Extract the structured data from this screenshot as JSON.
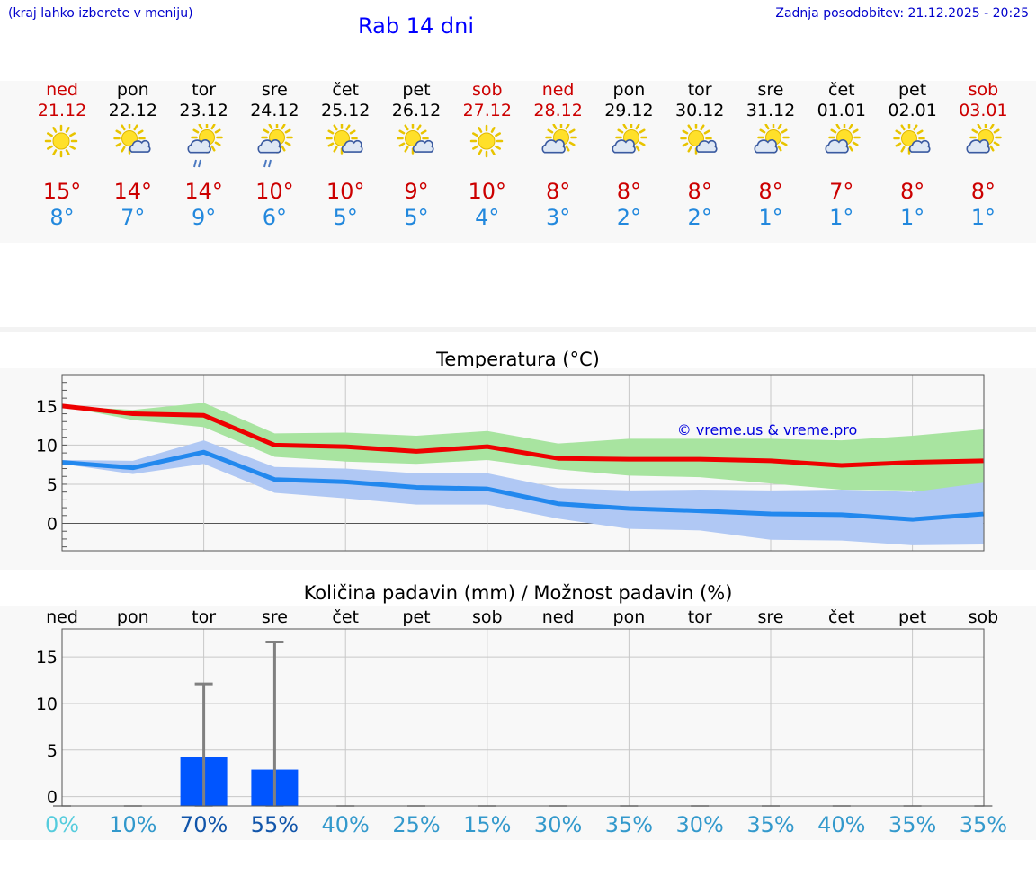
{
  "header": {
    "menu_hint": "(kraj lahko izberete v meniju)",
    "title": "Rab 14 dni",
    "updated": "Zadnja posodobitev: 21.12.2025 - 20:25"
  },
  "days": [
    {
      "name": "ned",
      "date": "21.12",
      "weekend": true,
      "icon": "sun-icon",
      "hi": "15°",
      "lo": "8°"
    },
    {
      "name": "pon",
      "date": "22.12",
      "weekend": false,
      "icon": "sun-cloud-icon",
      "hi": "14°",
      "lo": "7°"
    },
    {
      "name": "tor",
      "date": "23.12",
      "weekend": false,
      "icon": "sun-cloud-rain-icon",
      "hi": "14°",
      "lo": "9°"
    },
    {
      "name": "sre",
      "date": "24.12",
      "weekend": false,
      "icon": "sun-cloud-rain-icon",
      "hi": "10°",
      "lo": "6°"
    },
    {
      "name": "čet",
      "date": "25.12",
      "weekend": false,
      "icon": "sun-cloud-icon",
      "hi": "10°",
      "lo": "5°"
    },
    {
      "name": "pet",
      "date": "26.12",
      "weekend": false,
      "icon": "sun-cloud-icon",
      "hi": "9°",
      "lo": "5°"
    },
    {
      "name": "sob",
      "date": "27.12",
      "weekend": true,
      "icon": "sun-icon",
      "hi": "10°",
      "lo": "4°"
    },
    {
      "name": "ned",
      "date": "28.12",
      "weekend": true,
      "icon": "cloud-sun-icon",
      "hi": "8°",
      "lo": "3°"
    },
    {
      "name": "pon",
      "date": "29.12",
      "weekend": false,
      "icon": "cloud-sun-icon",
      "hi": "8°",
      "lo": "2°"
    },
    {
      "name": "tor",
      "date": "30.12",
      "weekend": false,
      "icon": "sun-cloud-icon",
      "hi": "8°",
      "lo": "2°"
    },
    {
      "name": "sre",
      "date": "31.12",
      "weekend": false,
      "icon": "cloud-sun-icon",
      "hi": "8°",
      "lo": "1°"
    },
    {
      "name": "čet",
      "date": "01.01",
      "weekend": false,
      "icon": "cloud-sun-icon",
      "hi": "7°",
      "lo": "1°"
    },
    {
      "name": "pet",
      "date": "02.01",
      "weekend": false,
      "icon": "sun-cloud-icon",
      "hi": "8°",
      "lo": "1°"
    },
    {
      "name": "sob",
      "date": "03.01",
      "weekend": true,
      "icon": "cloud-sun-icon",
      "hi": "8°",
      "lo": "1°"
    }
  ],
  "colors": {
    "weekend": "#cc0000",
    "max_line": "#ee0000",
    "min_line": "#2288ee",
    "max_band": "#a8e4a0",
    "min_band": "#b0c8f4",
    "bar": "#0055ff",
    "whisker": "#808080"
  },
  "chart_data": [
    {
      "type": "line",
      "title": "Temperatura (°C)",
      "watermark": "© vreme.us & vreme.pro",
      "ylim": [
        -3.5,
        19
      ],
      "yticks": [
        0,
        5,
        10,
        15
      ],
      "ytick_labels": [
        "0",
        "5",
        "10",
        "15"
      ],
      "x": [
        0,
        1,
        2,
        3,
        4,
        5,
        6,
        7,
        8,
        9,
        10,
        11,
        12,
        13
      ],
      "series": [
        {
          "name": "max",
          "values": [
            15,
            14,
            13.8,
            10,
            9.8,
            9.2,
            9.8,
            8.3,
            8.2,
            8.2,
            8.0,
            7.4,
            7.8,
            8.0
          ],
          "band_low": [
            15,
            13.2,
            12.3,
            8.5,
            7.9,
            7.6,
            8.1,
            6.9,
            6.1,
            5.9,
            5.1,
            4.3,
            4.2,
            4.0
          ],
          "band_high": [
            15,
            14.5,
            15.4,
            11.5,
            11.6,
            11.2,
            11.8,
            10.2,
            10.8,
            10.8,
            10.8,
            10.6,
            11.2,
            12.0
          ]
        },
        {
          "name": "min",
          "values": [
            7.8,
            7.1,
            9.1,
            5.6,
            5.3,
            4.6,
            4.4,
            2.5,
            1.9,
            1.6,
            1.2,
            1.1,
            0.5,
            1.2
          ],
          "band_low": [
            7.6,
            6.3,
            7.6,
            3.9,
            3.2,
            2.4,
            2.4,
            0.6,
            -0.7,
            -0.9,
            -2.1,
            -2.2,
            -2.8,
            -2.7
          ],
          "band_high": [
            8.1,
            8.0,
            10.6,
            7.2,
            7.0,
            6.4,
            6.4,
            4.5,
            4.2,
            4.3,
            4.2,
            4.3,
            4.0,
            5.2
          ]
        }
      ]
    },
    {
      "type": "bar",
      "title": "Količina padavin (mm) / Možnost padavin (%)",
      "ylim": [
        -1,
        18
      ],
      "yticks": [
        0,
        5,
        10,
        15
      ],
      "ytick_labels": [
        "0",
        "5",
        "10",
        "15"
      ],
      "categories": [
        "ned",
        "pon",
        "tor",
        "sre",
        "čet",
        "pet",
        "sob",
        "ned",
        "pon",
        "tor",
        "sre",
        "čet",
        "pet",
        "sob"
      ],
      "values": [
        0,
        0,
        4.3,
        2.9,
        0,
        0,
        0,
        0,
        0,
        0,
        0,
        0,
        0,
        0
      ],
      "max_values": [
        0,
        0,
        12.1,
        16.6,
        0,
        0,
        0,
        0,
        0,
        0,
        0,
        0,
        0,
        0
      ],
      "probability": [
        "0%",
        "10%",
        "70%",
        "55%",
        "40%",
        "25%",
        "15%",
        "30%",
        "35%",
        "30%",
        "35%",
        "40%",
        "35%",
        "35%"
      ],
      "probability_colors": [
        "#55ccdd",
        "#3399cc",
        "#1155aa",
        "#1155aa",
        "#3399cc",
        "#3399cc",
        "#3399cc",
        "#3399cc",
        "#3399cc",
        "#3399cc",
        "#3399cc",
        "#3399cc",
        "#3399cc",
        "#3399cc"
      ]
    }
  ]
}
